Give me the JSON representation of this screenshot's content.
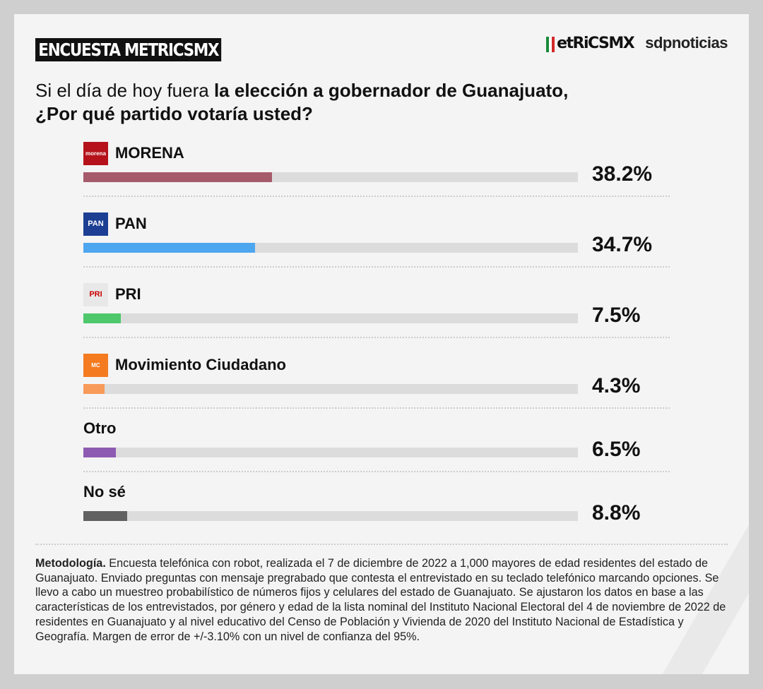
{
  "header": {
    "badge": "ENCUESTA METRICSMX",
    "logo_metrics": "etRiCSMX",
    "logo_sdp": "sdpnoticias"
  },
  "question": {
    "part1": "Si el día de hoy fuera ",
    "part2": "la elección a gobernador de Guanajuato,",
    "line2": "¿Por qué partido votaría usted?"
  },
  "chart_data": {
    "type": "bar",
    "orientation": "horizontal",
    "title": "Si el día de hoy fuera la elección a gobernador de Guanajuato, ¿Por qué partido votaría usted?",
    "categories": [
      "MORENA",
      "PAN",
      "PRI",
      "Movimiento Ciudadano",
      "Otro",
      "No sé"
    ],
    "values": [
      38.2,
      34.7,
      7.5,
      4.3,
      6.5,
      8.8
    ],
    "labels": [
      "38.2%",
      "34.7%",
      "7.5%",
      "4.3%",
      "6.5%",
      "8.8%"
    ],
    "colors": [
      "#a65b6a",
      "#4da6f0",
      "#4ec86b",
      "#f79a5a",
      "#8e5bb3",
      "#616161"
    ],
    "logos": [
      "morena-logo",
      "pan-logo",
      "pri-logo",
      "mc-logo",
      null,
      null
    ],
    "logo_text": [
      "morena",
      "PAN",
      "PRI",
      "MC",
      null,
      null
    ],
    "xlim": [
      0,
      100
    ],
    "unit": "%"
  },
  "methodology": {
    "label": "Metodología.",
    "text": " Encuesta telefónica con robot, realizada el 7 de diciembre de 2022 a 1,000 mayores de edad residentes del estado de Guanajuato. Enviado preguntas con mensaje pregrabado que contesta el entrevistado en su teclado telefónico marcando opciones. Se llevo a cabo un muestreo probabilístico de números fijos y celulares del estado de Guanajuato. Se ajustaron los datos en base a las características de los entrevistados, por género y edad de la lista nominal del Instituto Nacional Electoral del 4 de noviembre de 2022 de residentes en Guanajuato y al nivel educativo del Censo de Población y Vivienda de 2020 del Instituto Nacional de Estadística y Geografía. Margen de error de +/-3.10% con un nivel de confianza del 95%."
  }
}
